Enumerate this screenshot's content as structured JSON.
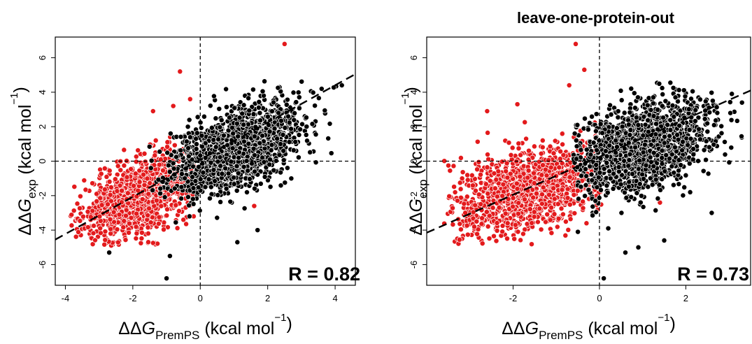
{
  "chart_data": [
    {
      "type": "scatter",
      "title": "",
      "r_text": "R = 0.82",
      "xlabel": {
        "prefix": "ΔΔ",
        "var": "G",
        "sub": "PremPS",
        "unit": " (kcal mol",
        "sup": "−1",
        "close": ")"
      },
      "ylabel": {
        "prefix": "ΔΔ",
        "var": "G",
        "sub": "exp",
        "unit": " (kcal mol",
        "sup": "−1",
        "close": ")"
      },
      "xlim": [
        -4.3,
        4.6
      ],
      "ylim": [
        -7.2,
        7.2
      ],
      "xticks": [
        -4,
        -2,
        0,
        2,
        4
      ],
      "yticks": [
        -6,
        -4,
        -2,
        0,
        2,
        4,
        6
      ],
      "regression": {
        "x1": -4.3,
        "y1": -4.55,
        "x2": 4.6,
        "y2": 5.05
      },
      "series": [
        {
          "color": "#e31a1c",
          "cluster": {
            "cx": -1.8,
            "cy": -2.1,
            "sx": 0.85,
            "sy": 1.25,
            "rho": 0.45,
            "n": 1100
          },
          "xrange": [
            -3.9,
            -0.1
          ],
          "outliers": [
            [
              2.5,
              6.8
            ],
            [
              -0.6,
              5.2
            ],
            [
              -1.4,
              2.9
            ],
            [
              -0.8,
              3.2
            ],
            [
              -0.3,
              3.6
            ],
            [
              1.6,
              -2.6
            ],
            [
              -0.5,
              -3.4
            ],
            [
              0.9,
              0.2
            ]
          ]
        },
        {
          "color": "#000000",
          "cluster": {
            "cx": 1.05,
            "cy": 0.7,
            "sx": 0.95,
            "sy": 1.3,
            "rho": 0.5,
            "n": 1500
          },
          "xrange": [
            -1.6,
            4.1
          ],
          "outliers": [
            [
              -1.0,
              -6.8
            ],
            [
              -0.9,
              -5.5
            ],
            [
              1.1,
              -4.7
            ],
            [
              1.7,
              -4.0
            ],
            [
              -2.7,
              -5.3
            ],
            [
              2.7,
              -1.0
            ],
            [
              3.6,
              4.2
            ],
            [
              4.2,
              4.4
            ]
          ]
        }
      ]
    },
    {
      "type": "scatter",
      "title": "leave-one-protein-out",
      "r_text": "R = 0.73",
      "xlabel": {
        "prefix": "ΔΔ",
        "var": "G",
        "sub": "PremPS",
        "unit": " (kcal mol",
        "sup": "−1",
        "close": ")"
      },
      "ylabel": {
        "prefix": "ΔΔ",
        "var": "G",
        "sub": "exp",
        "unit": " (kcal mol",
        "sup": "−1",
        "close": ")"
      },
      "xlim": [
        -4.0,
        3.5
      ],
      "ylim": [
        -7.2,
        7.2
      ],
      "xticks": [
        -2,
        0,
        2
      ],
      "yticks": [
        -6,
        -4,
        -2,
        0,
        2,
        4,
        6
      ],
      "regression": {
        "x1": -4.0,
        "y1": -4.15,
        "x2": 3.5,
        "y2": 4.1
      },
      "series": [
        {
          "color": "#e31a1c",
          "cluster": {
            "cx": -1.65,
            "cy": -1.7,
            "sx": 0.9,
            "sy": 1.35,
            "rho": 0.4,
            "n": 1100
          },
          "xrange": [
            -3.6,
            0.05
          ],
          "outliers": [
            [
              -0.55,
              6.8
            ],
            [
              -0.35,
              5.3
            ],
            [
              -2.6,
              2.9
            ],
            [
              -1.9,
              3.3
            ],
            [
              -0.7,
              4.4
            ],
            [
              1.4,
              -2.4
            ],
            [
              -0.3,
              -3.6
            ],
            [
              2.0,
              0.3
            ]
          ]
        },
        {
          "color": "#000000",
          "cluster": {
            "cx": 0.95,
            "cy": 0.85,
            "sx": 0.8,
            "sy": 1.35,
            "rho": 0.42,
            "n": 1500
          },
          "xrange": [
            -0.6,
            3.5
          ],
          "outliers": [
            [
              0.1,
              -6.8
            ],
            [
              0.9,
              -5.0
            ],
            [
              1.5,
              -4.6
            ],
            [
              0.6,
              -5.3
            ],
            [
              2.6,
              -3.0
            ],
            [
              3.3,
              3.4
            ],
            [
              -0.5,
              -4.1
            ],
            [
              2.1,
              -1.8
            ]
          ]
        }
      ]
    }
  ]
}
